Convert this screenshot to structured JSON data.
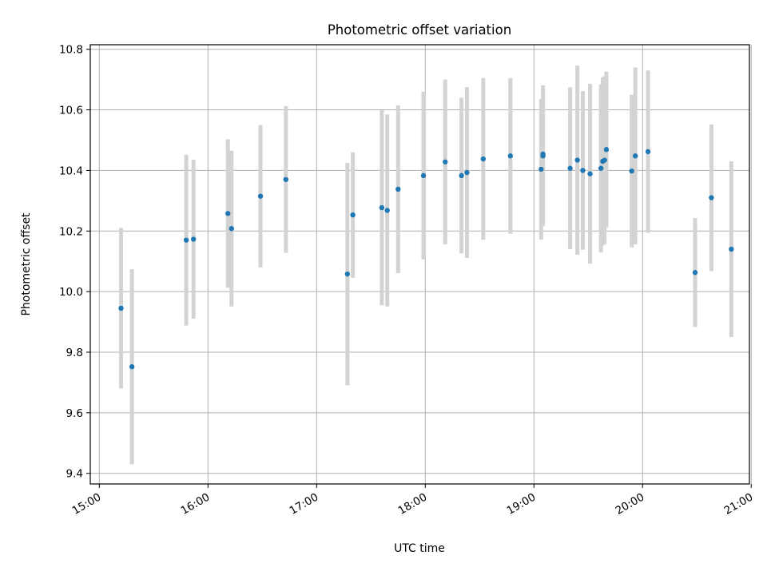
{
  "chart_data": {
    "type": "scatter",
    "title": "Photometric offset variation",
    "xlabel": "UTC time",
    "ylabel": "Photometric offset",
    "x_axis": {
      "type": "time",
      "lim": [
        "14:55",
        "20:59"
      ],
      "ticks": [
        "15:00",
        "16:00",
        "17:00",
        "18:00",
        "19:00",
        "20:00",
        "21:00"
      ]
    },
    "y_axis": {
      "lim": [
        9.365,
        10.815
      ],
      "ticks": [
        "9.4",
        "9.6",
        "9.8",
        "10.0",
        "10.2",
        "10.4",
        "10.6",
        "10.8"
      ]
    },
    "grid": true,
    "colors": {
      "points": "#1f77b4",
      "error_bars": "#d3d3d3",
      "grid": "#b0b0b0"
    },
    "series": [
      {
        "points": [
          {
            "time": "15:12",
            "y": 9.945,
            "err": 0.265
          },
          {
            "time": "15:18",
            "y": 9.752,
            "err": 0.322
          },
          {
            "time": "15:48",
            "y": 10.17,
            "err": 0.282
          },
          {
            "time": "15:52",
            "y": 10.173,
            "err": 0.262
          },
          {
            "time": "16:11",
            "y": 10.258,
            "err": 0.245
          },
          {
            "time": "16:13",
            "y": 10.208,
            "err": 0.257
          },
          {
            "time": "16:29",
            "y": 10.315,
            "err": 0.235
          },
          {
            "time": "16:43",
            "y": 10.37,
            "err": 0.242
          },
          {
            "time": "17:17",
            "y": 10.058,
            "err": 0.367
          },
          {
            "time": "17:20",
            "y": 10.253,
            "err": 0.207
          },
          {
            "time": "17:36",
            "y": 10.277,
            "err": 0.322
          },
          {
            "time": "17:39",
            "y": 10.268,
            "err": 0.317
          },
          {
            "time": "17:45",
            "y": 10.338,
            "err": 0.277
          },
          {
            "time": "17:59",
            "y": 10.383,
            "err": 0.277
          },
          {
            "time": "18:11",
            "y": 10.428,
            "err": 0.272
          },
          {
            "time": "18:20",
            "y": 10.383,
            "err": 0.257
          },
          {
            "time": "18:23",
            "y": 10.393,
            "err": 0.282
          },
          {
            "time": "18:32",
            "y": 10.438,
            "err": 0.267
          },
          {
            "time": "18:47",
            "y": 10.448,
            "err": 0.257
          },
          {
            "time": "19:04",
            "y": 10.404,
            "err": 0.232
          },
          {
            "time": "19:05",
            "y": 10.448,
            "err": 0.232
          },
          {
            "time": "19:05",
            "y": 10.454,
            "err": 0.227
          },
          {
            "time": "19:20",
            "y": 10.407,
            "err": 0.267
          },
          {
            "time": "19:24",
            "y": 10.434,
            "err": 0.312
          },
          {
            "time": "19:27",
            "y": 10.4,
            "err": 0.262
          },
          {
            "time": "19:31",
            "y": 10.389,
            "err": 0.297
          },
          {
            "time": "19:37",
            "y": 10.407,
            "err": 0.277
          },
          {
            "time": "19:38",
            "y": 10.43,
            "err": 0.277
          },
          {
            "time": "19:39",
            "y": 10.434,
            "err": 0.277
          },
          {
            "time": "19:40",
            "y": 10.469,
            "err": 0.257
          },
          {
            "time": "19:54",
            "y": 10.398,
            "err": 0.252
          },
          {
            "time": "19:56",
            "y": 10.448,
            "err": 0.292
          },
          {
            "time": "20:03",
            "y": 10.462,
            "err": 0.268
          },
          {
            "time": "20:29",
            "y": 10.063,
            "err": 0.18
          },
          {
            "time": "20:38",
            "y": 10.31,
            "err": 0.242
          },
          {
            "time": "20:49",
            "y": 10.14,
            "err": 0.29
          }
        ]
      }
    ]
  }
}
